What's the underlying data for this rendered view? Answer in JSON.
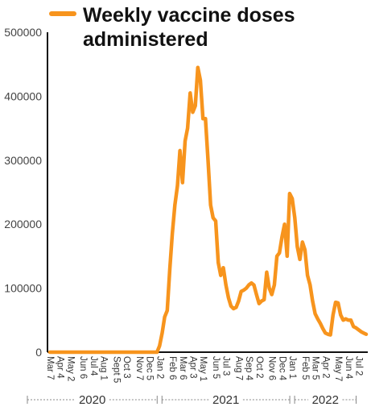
{
  "chart_data": {
    "type": "line",
    "legend": {
      "label": "Weekly vaccine doses administered",
      "line1": "Weekly vaccine doses",
      "line2": "administered",
      "placement": "top-left"
    },
    "series_color": "#F7941D",
    "ylim": [
      0,
      500000
    ],
    "y_ticks": [
      0,
      100000,
      200000,
      300000,
      400000,
      500000
    ],
    "y_tick_labels": [
      "0",
      "100000",
      "200000",
      "300000",
      "400000",
      "500000"
    ],
    "x_ticks": [
      {
        "label": "Mar 7",
        "i": 0
      },
      {
        "label": "Apr 4",
        "i": 4
      },
      {
        "label": "May 2",
        "i": 8
      },
      {
        "label": "Jun 6",
        "i": 13
      },
      {
        "label": "Jul 4",
        "i": 17
      },
      {
        "label": "Aug 1",
        "i": 21
      },
      {
        "label": "Sept 5",
        "i": 26
      },
      {
        "label": "Oct 3",
        "i": 30
      },
      {
        "label": "Nov 7",
        "i": 35
      },
      {
        "label": "Dec 5",
        "i": 39
      },
      {
        "label": "Jan 2",
        "i": 43
      },
      {
        "label": "Feb 6",
        "i": 48
      },
      {
        "label": "Mar 6",
        "i": 52
      },
      {
        "label": "Apr 3",
        "i": 56
      },
      {
        "label": "May 1",
        "i": 60
      },
      {
        "label": "Jun 5",
        "i": 65
      },
      {
        "label": "Jul 3",
        "i": 69
      },
      {
        "label": "Aug 7",
        "i": 74
      },
      {
        "label": "Sep 4",
        "i": 78
      },
      {
        "label": "Oct 2",
        "i": 82
      },
      {
        "label": "Nov 6",
        "i": 87
      },
      {
        "label": "Dec 4",
        "i": 91
      },
      {
        "label": "Jan 1",
        "i": 95
      },
      {
        "label": "Feb 5",
        "i": 100
      },
      {
        "label": "Mar 5",
        "i": 104
      },
      {
        "label": "Apr 2",
        "i": 108
      },
      {
        "label": "May 7",
        "i": 113
      },
      {
        "label": "Jun 4",
        "i": 117
      },
      {
        "label": "Jul 2",
        "i": 121
      }
    ],
    "year_groups": [
      {
        "label": "2020",
        "start": 0,
        "end": 43
      },
      {
        "label": "2021",
        "start": 43,
        "end": 95
      },
      {
        "label": "2022",
        "start": 95,
        "end": 121
      }
    ],
    "series": [
      {
        "values": [
          0,
          0,
          0,
          0,
          0,
          0,
          0,
          0,
          0,
          0,
          0,
          0,
          0,
          0,
          0,
          0,
          0,
          0,
          0,
          0,
          0,
          0,
          0,
          0,
          0,
          0,
          0,
          0,
          0,
          0,
          0,
          0,
          0,
          0,
          0,
          0,
          0,
          0,
          0,
          0,
          0,
          0,
          0,
          10000,
          30000,
          55000,
          65000,
          130000,
          185000,
          230000,
          260000,
          315000,
          265000,
          330000,
          350000,
          405000,
          375000,
          385000,
          445000,
          425000,
          365000,
          365000,
          300000,
          230000,
          210000,
          205000,
          140000,
          120000,
          132000,
          105000,
          85000,
          72000,
          68000,
          70000,
          80000,
          95000,
          97000,
          100000,
          105000,
          108000,
          105000,
          90000,
          76000,
          80000,
          82000,
          125000,
          100000,
          90000,
          105000,
          150000,
          155000,
          180000,
          200000,
          150000,
          248000,
          240000,
          210000,
          165000,
          145000,
          172000,
          160000,
          120000,
          105000,
          80000,
          60000,
          52000,
          45000,
          37000,
          30000,
          28000,
          27000,
          58000,
          78000,
          77000,
          58000,
          50000,
          52000,
          50000,
          50000,
          40000,
          38000,
          35000,
          32000,
          30000,
          28000
        ]
      }
    ]
  }
}
